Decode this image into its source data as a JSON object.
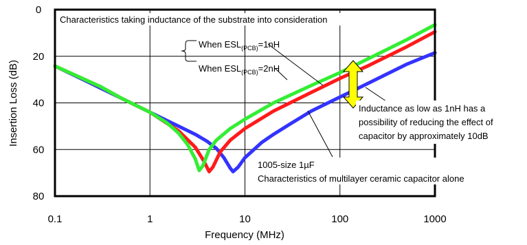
{
  "chart_data": {
    "type": "line",
    "title": "Characteristics taking inductance of the substrate into consideration",
    "xlabel": "Frequency (MHz)",
    "ylabel": "Insertion Loss (dB)",
    "xscale": "log",
    "xlim": [
      0.1,
      1000
    ],
    "ylim": [
      0,
      80
    ],
    "y_inverted": true,
    "grid": true,
    "x_ticks": [
      "0.1",
      "1",
      "10",
      "100",
      "1000"
    ],
    "y_ticks": [
      "0",
      "20",
      "40",
      "60",
      "80"
    ],
    "series": [
      {
        "key": "alone",
        "color": "#3333ff",
        "points": [
          [
            0.1,
            24.2
          ],
          [
            0.2,
            30.1
          ],
          [
            0.5,
            38.0
          ],
          [
            1,
            44.0
          ],
          [
            2,
            50.0
          ],
          [
            3,
            53.5
          ],
          [
            4,
            56.5
          ],
          [
            5,
            59.5
          ],
          [
            6,
            63.5
          ],
          [
            7,
            68.0
          ],
          [
            7.5,
            69.5
          ],
          [
            8.5,
            67.5
          ],
          [
            10,
            63.5
          ],
          [
            15,
            57.0
          ],
          [
            20,
            53.5
          ],
          [
            30,
            49.0
          ],
          [
            50,
            43.5
          ],
          [
            100,
            37.5
          ],
          [
            150,
            34.0
          ],
          [
            200,
            31.5
          ],
          [
            300,
            28.0
          ],
          [
            500,
            23.5
          ],
          [
            1000,
            18.5
          ]
        ]
      },
      {
        "key": "esl_2nh",
        "color": "#ff1a1a",
        "points": [
          [
            0.1,
            24.2
          ],
          [
            0.3,
            33.0
          ],
          [
            0.5,
            38.0
          ],
          [
            1,
            44.0
          ],
          [
            2,
            52.0
          ],
          [
            3,
            59.0
          ],
          [
            3.7,
            65.0
          ],
          [
            4.2,
            69.5
          ],
          [
            4.6,
            67.5
          ],
          [
            5.5,
            61.0
          ],
          [
            7,
            56.0
          ],
          [
            10,
            51.0
          ],
          [
            20,
            43.5
          ],
          [
            50,
            35.5
          ],
          [
            100,
            29.5
          ],
          [
            200,
            24.0
          ],
          [
            500,
            16.0
          ],
          [
            1000,
            9.5
          ]
        ]
      },
      {
        "key": "esl_1nh",
        "color": "#33ee33",
        "points": [
          [
            0.1,
            24.2
          ],
          [
            0.3,
            33.0
          ],
          [
            0.5,
            38.0
          ],
          [
            1,
            44.0
          ],
          [
            1.5,
            48.5
          ],
          [
            2,
            53.0
          ],
          [
            2.5,
            58.0
          ],
          [
            3,
            64.0
          ],
          [
            3.3,
            69.0
          ],
          [
            3.6,
            67.0
          ],
          [
            4.2,
            60.0
          ],
          [
            5,
            56.0
          ],
          [
            7,
            51.0
          ],
          [
            10,
            47.0
          ],
          [
            20,
            40.0
          ],
          [
            50,
            32.5
          ],
          [
            100,
            27.0
          ],
          [
            200,
            21.0
          ],
          [
            500,
            13.0
          ],
          [
            1000,
            6.5
          ]
        ]
      }
    ],
    "annotations": {
      "esl_1nh": "When ESL(PCB)=1nH",
      "esl_2nh": "When ESL(PCB)=2nH",
      "esl_base": "When ESL",
      "esl_sub": "(PCB)",
      "esl_1nh_value": "=1nH",
      "esl_2nh_value": "=2nH",
      "reduction_note": [
        "Inductance as low as 1nH has a",
        "possibility of reducing the effect of",
        "capacitor by approximately 10dB"
      ],
      "capacitor_note": [
        "1005-size  1µF",
        "Characteristics of multilayer ceramic capacitor alone"
      ]
    },
    "arrow_color": "#ffff00"
  }
}
